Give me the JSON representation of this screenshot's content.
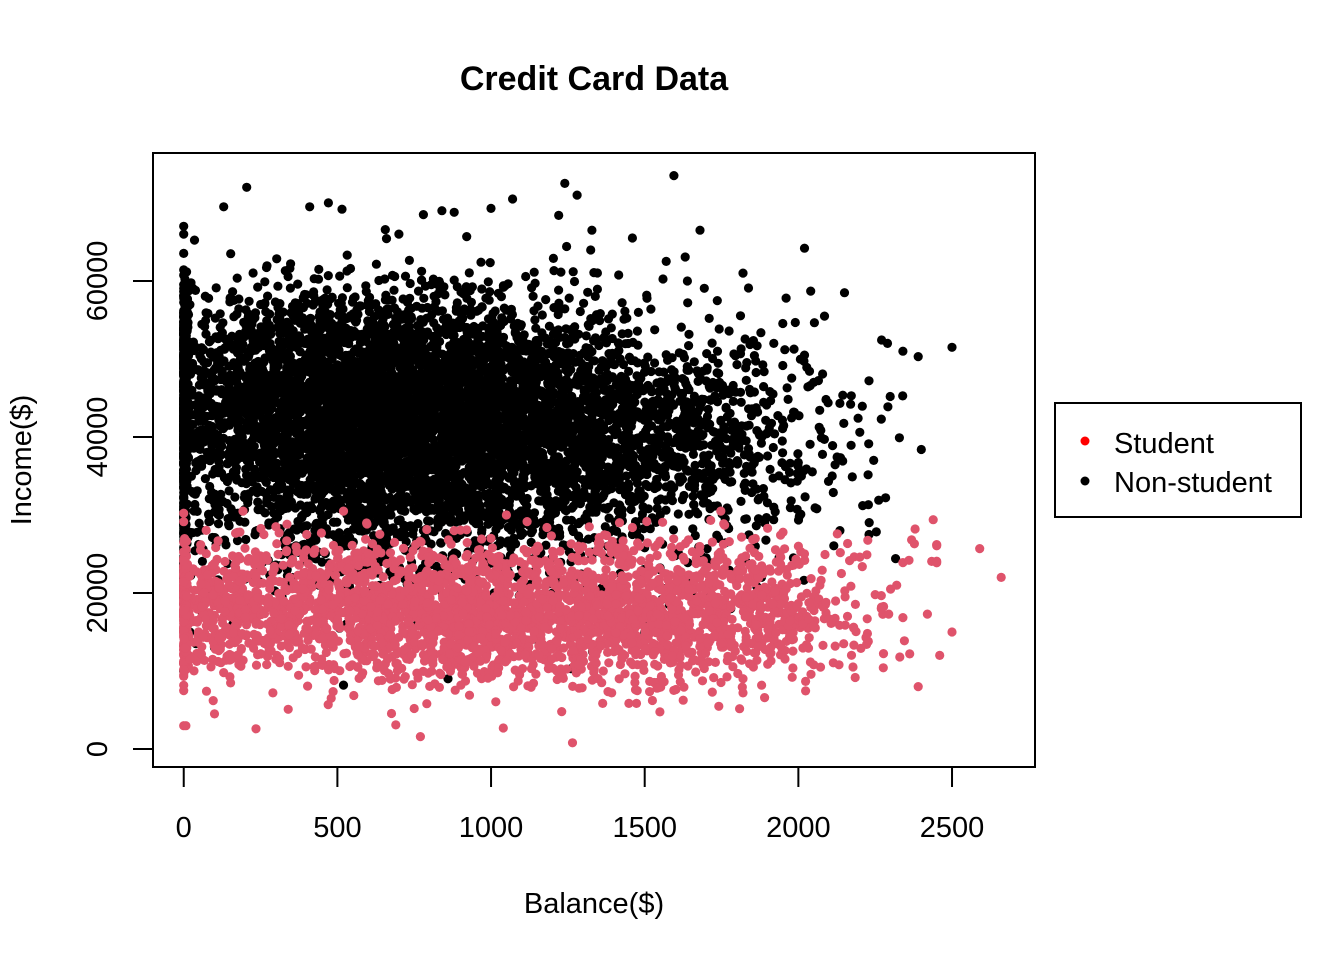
{
  "chart_data": {
    "type": "scatter",
    "title": "Credit Card Data",
    "xlabel": "Balance($)",
    "ylabel": "Income($)",
    "xlim": [
      -100,
      2770
    ],
    "ylim": [
      -2300,
      76400
    ],
    "x_ticks": [
      0,
      500,
      1000,
      1500,
      2000,
      2500
    ],
    "x_tick_labels": [
      "0",
      "500",
      "1000",
      "1500",
      "2000",
      "2500"
    ],
    "y_ticks": [
      0,
      20000,
      40000,
      60000
    ],
    "y_tick_labels": [
      "0",
      "20000",
      "40000",
      "60000"
    ],
    "grid": false,
    "legend": {
      "position": "right",
      "entries": [
        {
          "label": "Student",
          "color": "#ff0000"
        },
        {
          "label": "Non-student",
          "color": "#000000"
        }
      ]
    },
    "series": [
      {
        "name": "Non-student",
        "color": "#000000",
        "points": [
          [
            1595,
            73500
          ],
          [
            205,
            72000
          ],
          [
            1240,
            72500
          ],
          [
            1280,
            71000
          ],
          [
            1070,
            70500
          ],
          [
            130,
            69500
          ],
          [
            410,
            69500
          ],
          [
            515,
            69200
          ],
          [
            840,
            69000
          ],
          [
            880,
            68800
          ],
          [
            1000,
            69300
          ],
          [
            780,
            68500
          ],
          [
            1220,
            68400
          ],
          [
            0,
            67000
          ],
          [
            0,
            66000
          ],
          [
            1680,
            66500
          ],
          [
            1460,
            65500
          ],
          [
            700,
            66000
          ],
          [
            1570,
            62500
          ],
          [
            1820,
            61000
          ],
          [
            2020,
            64200
          ],
          [
            2040,
            58700
          ],
          [
            2150,
            58500
          ],
          [
            1960,
            57800
          ],
          [
            2085,
            55500
          ],
          [
            2290,
            52000
          ],
          [
            2340,
            51000
          ],
          [
            2390,
            50300
          ],
          [
            2500,
            51500
          ],
          [
            1710,
            55200
          ],
          [
            1640,
            57200
          ],
          [
            1920,
            52000
          ],
          [
            2020,
            50500
          ],
          [
            2230,
            47200
          ],
          [
            2050,
            47000
          ],
          [
            2135,
            44300
          ],
          [
            2170,
            44200
          ],
          [
            2090,
            44800
          ],
          [
            2200,
            40600
          ],
          [
            2400,
            38400
          ],
          [
            2245,
            37000
          ],
          [
            2010,
            35000
          ],
          [
            2110,
            35000
          ],
          [
            2060,
            30800
          ],
          [
            2135,
            28000
          ],
          [
            2230,
            27500
          ],
          [
            1920,
            31000
          ],
          [
            1890,
            29000
          ],
          [
            1860,
            26000
          ],
          [
            1830,
            24000
          ],
          [
            1780,
            22500
          ],
          [
            1740,
            27000
          ],
          [
            1700,
            24500
          ],
          [
            1640,
            22000
          ],
          [
            1600,
            24800
          ],
          [
            1550,
            23000
          ],
          [
            1500,
            25800
          ],
          [
            1460,
            27500
          ],
          [
            1420,
            22500
          ],
          [
            1380,
            26000
          ],
          [
            1340,
            25300
          ],
          [
            1300,
            20500
          ],
          [
            1260,
            24000
          ],
          [
            1220,
            28300
          ],
          [
            1180,
            29500
          ],
          [
            1120,
            29000
          ],
          [
            1060,
            30500
          ],
          [
            1000,
            29500
          ],
          [
            980,
            25000
          ],
          [
            940,
            23000
          ],
          [
            900,
            27500
          ],
          [
            860,
            24000
          ],
          [
            820,
            21300
          ],
          [
            780,
            28000
          ],
          [
            720,
            25500
          ],
          [
            680,
            22000
          ],
          [
            640,
            24000
          ],
          [
            600,
            20200
          ],
          [
            560,
            23500
          ],
          [
            520,
            26700
          ],
          [
            480,
            18500
          ],
          [
            440,
            21000
          ],
          [
            400,
            24000
          ],
          [
            360,
            16500
          ],
          [
            320,
            19500
          ],
          [
            280,
            22300
          ],
          [
            240,
            18000
          ],
          [
            200,
            21800
          ],
          [
            160,
            16000
          ],
          [
            120,
            19000
          ],
          [
            80,
            22500
          ],
          [
            40,
            13500
          ],
          [
            0,
            11000
          ],
          [
            20,
            15000
          ],
          [
            60,
            17500
          ],
          [
            100,
            13000
          ],
          [
            0,
            10000
          ],
          [
            520,
            8200
          ],
          [
            1050,
            12000
          ],
          [
            660,
            13500
          ],
          [
            860,
            9000
          ],
          [
            1150,
            14000
          ],
          [
            1260,
            10300
          ],
          [
            1330,
            12500
          ],
          [
            1500,
            15000
          ],
          [
            1140,
            17500
          ],
          [
            930,
            18000
          ],
          [
            760,
            16000
          ],
          [
            1010,
            20000
          ],
          [
            600,
            14800
          ],
          [
            350,
            15000
          ],
          [
            1700,
            20000
          ],
          [
            1780,
            18000
          ],
          [
            1580,
            18500
          ],
          [
            1360,
            19000
          ],
          [
            1430,
            16500
          ],
          [
            1620,
            14000
          ],
          [
            1880,
            22000
          ]
        ],
        "clusters": [
          {
            "cx": 700,
            "cy": 42500,
            "sx": 380,
            "sy": 7000,
            "n": 2300
          },
          {
            "cx": 420,
            "cy": 44000,
            "sx": 300,
            "sy": 6500,
            "n": 1200
          },
          {
            "cx": 1050,
            "cy": 41500,
            "sx": 380,
            "sy": 6800,
            "n": 1300
          },
          {
            "cx": 1450,
            "cy": 40500,
            "sx": 300,
            "sy": 6500,
            "n": 500
          },
          {
            "cx": 1800,
            "cy": 40000,
            "sx": 200,
            "sy": 6500,
            "n": 150
          },
          {
            "cx": 5,
            "cy": 43000,
            "sx": 5,
            "sy": 9000,
            "n": 320
          },
          {
            "cx": 650,
            "cy": 52000,
            "sx": 420,
            "sy": 5200,
            "n": 500
          },
          {
            "cx": 800,
            "cy": 32500,
            "sx": 450,
            "sy": 3800,
            "n": 500
          },
          {
            "cx": 700,
            "cy": 24000,
            "sx": 500,
            "sy": 3500,
            "n": 220
          }
        ]
      },
      {
        "name": "Student",
        "color": "#df536b",
        "points": [
          [
            1265,
            800
          ],
          [
            770,
            1600
          ],
          [
            235,
            2600
          ],
          [
            1040,
            2700
          ],
          [
            100,
            4500
          ],
          [
            690,
            3100
          ],
          [
            1230,
            4800
          ],
          [
            340,
            5100
          ],
          [
            470,
            5700
          ],
          [
            480,
            6500
          ],
          [
            750,
            5200
          ],
          [
            930,
            6900
          ],
          [
            290,
            7200
          ],
          [
            2390,
            8000
          ],
          [
            1890,
            6600
          ],
          [
            1820,
            7200
          ],
          [
            1720,
            7300
          ],
          [
            1470,
            7600
          ],
          [
            2460,
            12000
          ],
          [
            2330,
            11800
          ],
          [
            2500,
            15000
          ],
          [
            2590,
            25700
          ],
          [
            2660,
            22000
          ],
          [
            2380,
            28200
          ],
          [
            2420,
            17300
          ],
          [
            2250,
            19800
          ],
          [
            2300,
            20500
          ],
          [
            2200,
            24600
          ],
          [
            2140,
            22500
          ],
          [
            2090,
            18800
          ],
          [
            2050,
            15800
          ],
          [
            2000,
            26000
          ],
          [
            1950,
            27800
          ],
          [
            2180,
            15500
          ],
          [
            2220,
            14300
          ],
          [
            2120,
            13200
          ],
          [
            2050,
            10800
          ],
          [
            1980,
            9200
          ],
          [
            0,
            9500
          ],
          [
            0,
            10200
          ],
          [
            20,
            11500
          ],
          [
            130,
            9800
          ],
          [
            1610,
            9500
          ],
          [
            1540,
            7800
          ],
          [
            1360,
            8500
          ],
          [
            1120,
            8100
          ],
          [
            990,
            9100
          ],
          [
            2340,
            23900
          ],
          [
            2270,
            18000
          ],
          [
            2360,
            24200
          ],
          [
            2320,
            21000
          ],
          [
            2160,
            17000
          ],
          [
            2070,
            21000
          ],
          [
            1940,
            25000
          ],
          [
            2010,
            19500
          ],
          [
            2100,
            16700
          ],
          [
            1900,
            28300
          ],
          [
            1760,
            28700
          ],
          [
            1460,
            28400
          ],
          [
            1050,
            30000
          ],
          [
            1000,
            27000
          ],
          [
            880,
            28000
          ],
          [
            400,
            27500
          ],
          [
            300,
            28500
          ]
        ],
        "clusters": [
          {
            "cx": 1050,
            "cy": 17000,
            "sx": 400,
            "sy": 3800,
            "n": 1100
          },
          {
            "cx": 600,
            "cy": 18000,
            "sx": 350,
            "sy": 3500,
            "n": 650
          },
          {
            "cx": 1550,
            "cy": 16500,
            "sx": 260,
            "sy": 3800,
            "n": 500
          },
          {
            "cx": 1850,
            "cy": 18000,
            "sx": 200,
            "sy": 4000,
            "n": 260
          },
          {
            "cx": 150,
            "cy": 18500,
            "sx": 130,
            "sy": 4000,
            "n": 320
          },
          {
            "cx": 5,
            "cy": 17500,
            "sx": 5,
            "sy": 4200,
            "n": 130
          },
          {
            "cx": 1250,
            "cy": 24500,
            "sx": 550,
            "sy": 2200,
            "n": 200
          },
          {
            "cx": 950,
            "cy": 11500,
            "sx": 500,
            "sy": 2000,
            "n": 150
          }
        ]
      }
    ]
  }
}
